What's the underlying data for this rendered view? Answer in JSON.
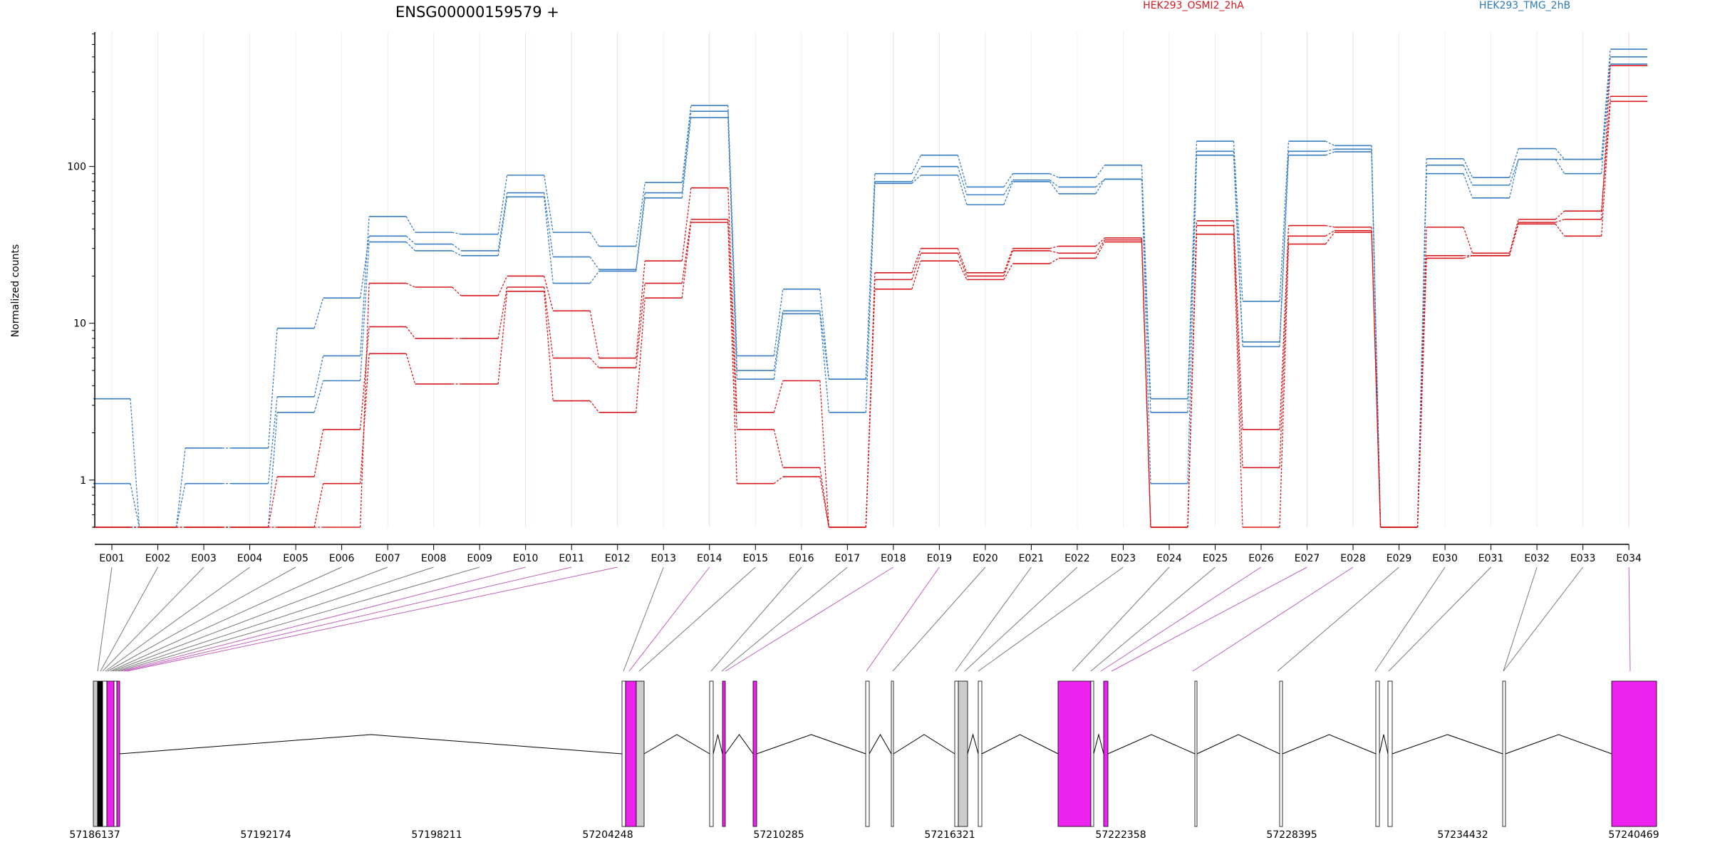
{
  "chart_data": {
    "type": "line",
    "title": "ENSG00000159579 +",
    "ylabel": "Normalized counts",
    "yscale": "log",
    "ylim": [
      0.5,
      720
    ],
    "yticks": [
      {
        "value": 1,
        "label": "1"
      },
      {
        "value": 10,
        "label": "10"
      },
      {
        "value": 100,
        "label": "100"
      }
    ],
    "categories": [
      "E001",
      "E002",
      "E003",
      "E004",
      "E005",
      "E006",
      "E007",
      "E008",
      "E009",
      "E010",
      "E011",
      "E012",
      "E013",
      "E014",
      "E015",
      "E016",
      "E017",
      "E018",
      "E019",
      "E020",
      "E021",
      "E022",
      "E023",
      "E024",
      "E025",
      "E026",
      "E027",
      "E028",
      "E029",
      "E030",
      "E031",
      "E032",
      "E033",
      "E034"
    ],
    "legend": [
      {
        "label": "HEK293_OSMI2_2hA",
        "color": "#d7191c",
        "placement": "top-center"
      },
      {
        "label": "HEK293_TMG_2hB",
        "color": "#2c7bb6",
        "placement": "top-right"
      }
    ],
    "series": [
      {
        "group": "blue",
        "color": "#3a7fc1",
        "values": [
          0.95,
          0.5,
          0.95,
          0.95,
          3.4,
          6.2,
          48,
          38,
          37,
          88,
          38,
          31,
          79,
          245,
          6.2,
          16.5,
          4.4,
          90,
          118,
          74,
          90,
          85,
          102,
          3.3,
          145,
          13.8,
          145,
          136,
          0.5,
          112,
          85,
          130,
          111,
          560
        ]
      },
      {
        "group": "blue",
        "color": "#3a7fc1",
        "values": [
          3.3,
          0.5,
          1.6,
          1.6,
          9.3,
          14.5,
          36,
          32,
          29,
          68,
          26.5,
          22,
          68,
          225,
          5.0,
          12,
          4.4,
          80,
          100,
          66,
          82,
          74,
          83,
          2.7,
          125,
          7.6,
          125,
          129,
          0.5,
          102,
          76,
          111,
          111,
          500
        ]
      },
      {
        "group": "blue",
        "color": "#3a7fc1",
        "values": [
          0.5,
          0.5,
          0.5,
          0.5,
          2.7,
          4.3,
          33,
          29,
          27,
          64,
          18,
          21.5,
          63,
          205,
          4.4,
          11.5,
          2.7,
          78,
          88,
          57,
          80,
          67,
          83,
          0.95,
          118,
          7.1,
          118,
          124,
          0.5,
          90,
          63,
          111,
          90,
          450
        ]
      },
      {
        "group": "red",
        "color": "#d7191c",
        "values": [
          0.5,
          0.5,
          0.5,
          0.5,
          0.5,
          0.5,
          18,
          17,
          15,
          20,
          12,
          6,
          25,
          73,
          2.7,
          4.3,
          0.5,
          21,
          30,
          21,
          30,
          31,
          35,
          0.5,
          45,
          2.1,
          42,
          41,
          0.5,
          41,
          28,
          46,
          52,
          280
        ]
      },
      {
        "group": "red",
        "color": "#d7191c",
        "values": [
          0.5,
          0.5,
          0.5,
          0.5,
          1.05,
          2.1,
          9.5,
          8,
          8,
          17,
          6,
          5.2,
          18,
          46,
          2.1,
          1.2,
          0.5,
          19,
          28,
          20,
          29,
          28,
          34,
          0.5,
          42,
          1.2,
          36,
          39,
          0.5,
          27,
          27,
          44,
          46,
          440
        ]
      },
      {
        "group": "red",
        "color": "#d7191c",
        "values": [
          0.5,
          0.5,
          0.5,
          0.5,
          0.5,
          0.95,
          6.4,
          4.1,
          4.1,
          16,
          3.2,
          2.7,
          14.5,
          44,
          0.95,
          1.05,
          0.5,
          16.5,
          25,
          19,
          24,
          26,
          33,
          0.5,
          37,
          0.5,
          32,
          38,
          0.5,
          26,
          27,
          43,
          36,
          260
        ]
      }
    ],
    "exon_mapping": {
      "highlighted": [
        9,
        10,
        11,
        13,
        17,
        18,
        25,
        26,
        27,
        33
      ],
      "targets_px": [
        137,
        141,
        144,
        148,
        151,
        155,
        158,
        162,
        166,
        170,
        174,
        178,
        875,
        883,
        897,
        998,
        1013,
        1018,
        1216,
        1253,
        1341,
        1354,
        1373,
        1505,
        1531,
        1545,
        1560,
        1674,
        1793,
        1930,
        1949,
        2110,
        2110,
        2288
      ]
    },
    "gene_model": {
      "coordinate_labels": [
        "57186137",
        "57192174",
        "57198211",
        "57204248",
        "57210285",
        "57216321",
        "57222358",
        "57228395",
        "57234432",
        "57240469"
      ],
      "boxes": [
        {
          "x0": 131,
          "x1": 137,
          "fill": "#cccccc"
        },
        {
          "x0": 137,
          "x1": 144,
          "fill": "#000000"
        },
        {
          "x0": 144,
          "x1": 150,
          "fill": "#ffffff"
        },
        {
          "x0": 150,
          "x1": 160,
          "fill": "#ee22ee"
        },
        {
          "x0": 160,
          "x1": 164,
          "fill": "#ffffff"
        },
        {
          "x0": 164,
          "x1": 168,
          "fill": "#ee22ee"
        },
        {
          "x0": 873,
          "x1": 878,
          "fill": "#ffffff"
        },
        {
          "x0": 878,
          "x1": 893,
          "fill": "#ee22ee"
        },
        {
          "x0": 893,
          "x1": 904,
          "fill": "#cccccc"
        },
        {
          "x0": 996,
          "x1": 1001,
          "fill": "#ffffff"
        },
        {
          "x0": 1014,
          "x1": 1018,
          "fill": "#ee22ee"
        },
        {
          "x0": 1057,
          "x1": 1062,
          "fill": "#ee22ee"
        },
        {
          "x0": 1215,
          "x1": 1220,
          "fill": "#ffffff"
        },
        {
          "x0": 1251,
          "x1": 1254,
          "fill": "#ffffff"
        },
        {
          "x0": 1340,
          "x1": 1345,
          "fill": "#ffffff"
        },
        {
          "x0": 1345,
          "x1": 1358,
          "fill": "#cccccc"
        },
        {
          "x0": 1373,
          "x1": 1378,
          "fill": "#ffffff"
        },
        {
          "x0": 1485,
          "x1": 1531,
          "fill": "#ee22ee"
        },
        {
          "x0": 1531,
          "x1": 1535,
          "fill": "#ffffff"
        },
        {
          "x0": 1549,
          "x1": 1555,
          "fill": "#ee22ee"
        },
        {
          "x0": 1677,
          "x1": 1680,
          "fill": "#ffffff"
        },
        {
          "x0": 1796,
          "x1": 1800,
          "fill": "#ffffff"
        },
        {
          "x0": 1931,
          "x1": 1936,
          "fill": "#ffffff"
        },
        {
          "x0": 1948,
          "x1": 1954,
          "fill": "#ffffff"
        },
        {
          "x0": 2109,
          "x1": 2113,
          "fill": "#ffffff"
        },
        {
          "x0": 2262,
          "x1": 2325,
          "fill": "#ee22ee"
        }
      ]
    }
  }
}
